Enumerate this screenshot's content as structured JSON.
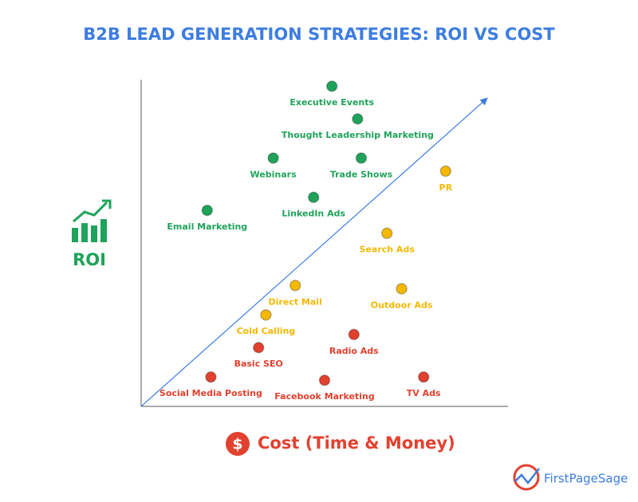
{
  "chart_data": {
    "type": "scatter",
    "title": "B2B LEAD GENERATION STRATEGIES: ROI VS COST",
    "x_label": "Cost (Time & Money)",
    "y_label": "ROI",
    "xlim": [
      0,
      100
    ],
    "ylim": [
      0,
      100
    ],
    "series": [
      {
        "color": "#1fa35a",
        "labels": [
          "Executive Events",
          "Thought Leadership Marketing",
          "Webinars",
          "Trade Shows",
          "LinkedIn Ads",
          "Email Marketing"
        ],
        "x": [
          52,
          59,
          36,
          60,
          47,
          18
        ],
        "y": [
          98,
          88,
          76,
          76,
          64,
          60
        ]
      },
      {
        "color": "#f5b800",
        "labels": [
          "PR",
          "Search Ads",
          "Direct Mail",
          "Outdoor Ads",
          "Cold Calling"
        ],
        "x": [
          83,
          67,
          42,
          71,
          34
        ],
        "y": [
          72,
          53,
          37,
          36,
          28
        ]
      },
      {
        "color": "#e2412f",
        "labels": [
          "Radio Ads",
          "Basic SEO",
          "Social Media Posting",
          "Facebook Marketing",
          "TV Ads"
        ],
        "x": [
          58,
          32,
          19,
          50,
          77
        ],
        "y": [
          22,
          18,
          9,
          8,
          9
        ]
      }
    ]
  },
  "logo": "FirstPageSage"
}
